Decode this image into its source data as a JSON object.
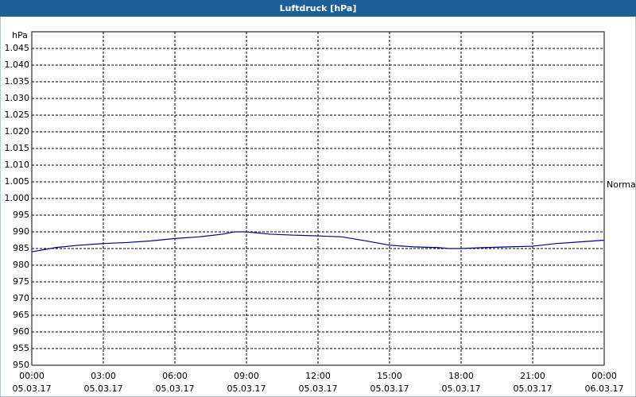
{
  "chart_data": {
    "type": "line",
    "title": "Luftdruck [hPa]",
    "y_unit": "hPa",
    "annotation": "Normal",
    "x": [
      0,
      1,
      2,
      3,
      4,
      5,
      6,
      7,
      8,
      8.5,
      9,
      10,
      11,
      12,
      13,
      14,
      15,
      16,
      17,
      17.5,
      18,
      19,
      20,
      21,
      22,
      23,
      24
    ],
    "series": [
      {
        "color": "#00008c",
        "values": [
          984,
          985.3,
          986,
          986.5,
          986.8,
          987.3,
          988,
          988.5,
          989.3,
          990,
          990,
          989.3,
          989,
          988.8,
          988.5,
          987.3,
          986,
          985.5,
          985.3,
          985,
          985,
          985.3,
          985.5,
          985.7,
          986.5,
          987,
          987.5
        ]
      }
    ],
    "xlim": [
      0,
      24
    ],
    "xticks": [
      {
        "value": 0,
        "label": "00:00",
        "date": "05.03.17"
      },
      {
        "value": 3,
        "label": "03:00",
        "date": "05.03.17"
      },
      {
        "value": 6,
        "label": "06:00",
        "date": "05.03.17"
      },
      {
        "value": 9,
        "label": "09:00",
        "date": "05.03.17"
      },
      {
        "value": 12,
        "label": "12:00",
        "date": "05.03.17"
      },
      {
        "value": 15,
        "label": "15:00",
        "date": "05.03.17"
      },
      {
        "value": 18,
        "label": "18:00",
        "date": "05.03.17"
      },
      {
        "value": 21,
        "label": "21:00",
        "date": "05.03.17"
      },
      {
        "value": 24,
        "label": "00:00",
        "date": "06.03.17"
      }
    ],
    "ylim": [
      950,
      1050
    ],
    "yticks": [
      950,
      955,
      960,
      965,
      970,
      975,
      980,
      985,
      990,
      995,
      {
        "value": 1000,
        "label": "1.000"
      },
      {
        "value": 1005,
        "label": "1.005"
      },
      {
        "value": 1010,
        "label": "1.010"
      },
      {
        "value": 1015,
        "label": "1.015"
      },
      {
        "value": 1020,
        "label": "1.020"
      },
      {
        "value": 1025,
        "label": "1.025"
      },
      {
        "value": 1030,
        "label": "1.030"
      },
      {
        "value": 1035,
        "label": "1.035"
      },
      {
        "value": 1040,
        "label": "1.040"
      },
      {
        "value": 1045,
        "label": "1.045"
      }
    ],
    "grid": true
  }
}
